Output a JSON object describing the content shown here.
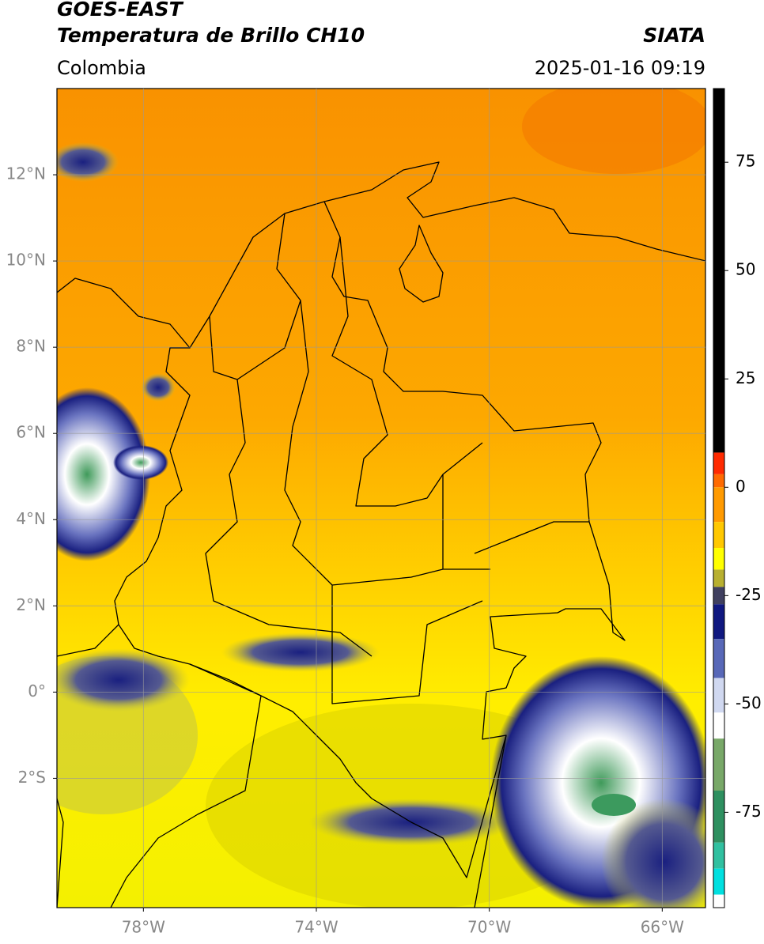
{
  "header": {
    "title_line1": "GOES-EAST",
    "title_line2": "Temperatura de Brillo CH10",
    "source": "SIATA",
    "region": "Colombia",
    "datetime": "2025-01-16 09:19"
  },
  "map": {
    "lonlim": [
      -80,
      -65
    ],
    "latlim": [
      -5,
      14
    ],
    "lon_ticks": [
      {
        "value": -78,
        "label": "78°W"
      },
      {
        "value": -74,
        "label": "74°W"
      },
      {
        "value": -70,
        "label": "70°W"
      },
      {
        "value": -66,
        "label": "66°W"
      }
    ],
    "lat_ticks": [
      {
        "value": 12,
        "label": "12°N"
      },
      {
        "value": 10,
        "label": "10°N"
      },
      {
        "value": 8,
        "label": "8°N"
      },
      {
        "value": 6,
        "label": "6°N"
      },
      {
        "value": 4,
        "label": "4°N"
      },
      {
        "value": 2,
        "label": "2°N"
      },
      {
        "value": 0,
        "label": "0°"
      },
      {
        "value": -2,
        "label": "2°S"
      }
    ],
    "grid": true
  },
  "colorbar": {
    "lim": [
      -97,
      92
    ],
    "ticks": [
      75,
      50,
      25,
      0,
      -25,
      -50,
      -75
    ],
    "stops": [
      {
        "value": 92,
        "color": "#000000"
      },
      {
        "value": 8,
        "color": "#ff2a00"
      },
      {
        "value": 3,
        "color": "#ff6a00"
      },
      {
        "value": 0,
        "color": "#ff9a00"
      },
      {
        "value": -8,
        "color": "#ffc800"
      },
      {
        "value": -14,
        "color": "#ffff00"
      },
      {
        "value": -19,
        "color": "#b8b030"
      },
      {
        "value": -23,
        "color": "#404060"
      },
      {
        "value": -27,
        "color": "#101880"
      },
      {
        "value": -35,
        "color": "#5868b8"
      },
      {
        "value": -44,
        "color": "#d0d8f0"
      },
      {
        "value": -52,
        "color": "#ffffff"
      },
      {
        "value": -58,
        "color": "#78a868"
      },
      {
        "value": -70,
        "color": "#2e9060"
      },
      {
        "value": -82,
        "color": "#30c0a0"
      },
      {
        "value": -88,
        "color": "#00e0e0"
      },
      {
        "value": -94,
        "color": "#ffffff"
      }
    ]
  }
}
